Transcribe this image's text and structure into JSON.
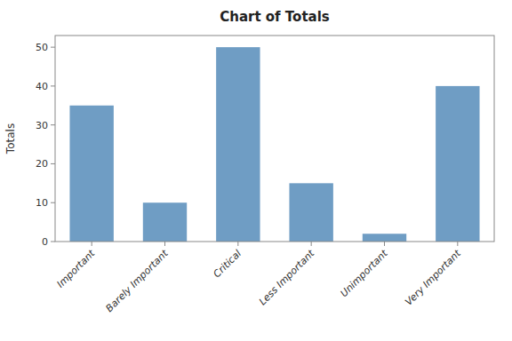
{
  "chart_data": {
    "type": "bar",
    "title": "Chart of Totals",
    "ylabel": "Totals",
    "categories": [
      "Important",
      "Barely Important",
      "Critical",
      "Less Important",
      "Unimportant",
      "Very Important"
    ],
    "values": [
      35,
      10,
      50,
      15,
      2,
      40
    ],
    "color": "#6f9dc4",
    "ylim": [
      0,
      53
    ],
    "yticks": [
      0,
      10,
      20,
      30,
      40,
      50
    ],
    "grid": false
  }
}
